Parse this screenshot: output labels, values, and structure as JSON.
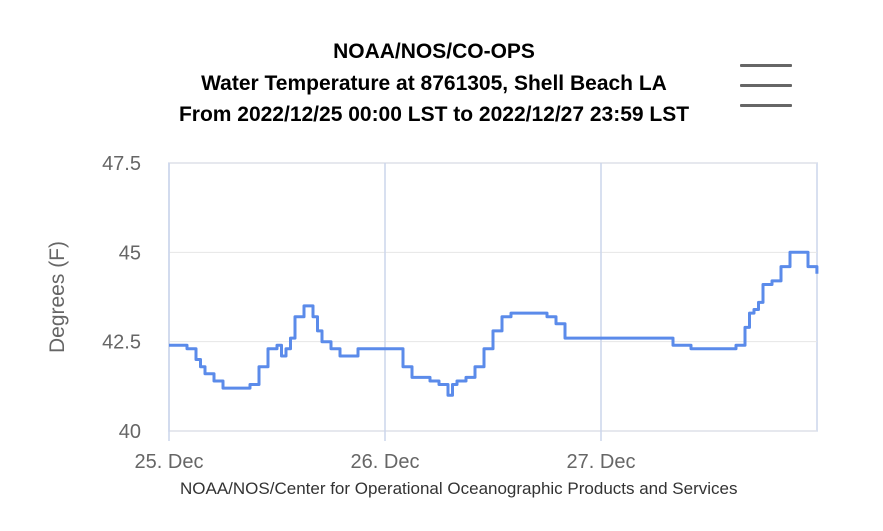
{
  "chart_data": {
    "type": "line",
    "title": [
      "NOAA/NOS/CO-OPS",
      "Water Temperature at 8761305, Shell Beach LA",
      "From 2022/12/25 00:00 LST to 2022/12/27 23:59 LST"
    ],
    "ylabel": "Degrees (F)",
    "xlabel": "",
    "x_range": [
      "2022-12-25 00:00",
      "2022-12-27 23:59"
    ],
    "ylim": [
      40,
      47.5
    ],
    "y_ticks": [
      "40",
      "42.5",
      "45",
      "47.5"
    ],
    "x_ticks": [
      {
        "label": "25. Dec",
        "time": "2022-12-25 00:00"
      },
      {
        "label": "26. Dec",
        "time": "2022-12-26 00:00"
      },
      {
        "label": "27. Dec",
        "time": "2022-12-27 00:00"
      }
    ],
    "grid": true,
    "series": [
      {
        "name": "",
        "color": "#5b8bea",
        "x": [
          "2022-12-25 00:00",
          "2022-12-25 01:00",
          "2022-12-25 02:00",
          "2022-12-25 03:00",
          "2022-12-25 03:30",
          "2022-12-25 04:00",
          "2022-12-25 05:00",
          "2022-12-25 06:00",
          "2022-12-25 07:00",
          "2022-12-25 08:00",
          "2022-12-25 09:00",
          "2022-12-25 10:00",
          "2022-12-25 11:00",
          "2022-12-25 12:00",
          "2022-12-25 12:30",
          "2022-12-25 13:00",
          "2022-12-25 13:30",
          "2022-12-25 14:00",
          "2022-12-25 15:00",
          "2022-12-25 16:00",
          "2022-12-25 16:30",
          "2022-12-25 17:00",
          "2022-12-25 18:00",
          "2022-12-25 19:00",
          "2022-12-25 20:00",
          "2022-12-25 21:00",
          "2022-12-25 22:00",
          "2022-12-25 23:00",
          "2022-12-26 00:00",
          "2022-12-26 01:00",
          "2022-12-26 02:00",
          "2022-12-26 03:00",
          "2022-12-26 04:00",
          "2022-12-26 05:00",
          "2022-12-26 06:00",
          "2022-12-26 07:00",
          "2022-12-26 07:30",
          "2022-12-26 08:00",
          "2022-12-26 09:00",
          "2022-12-26 10:00",
          "2022-12-26 11:00",
          "2022-12-26 12:00",
          "2022-12-26 13:00",
          "2022-12-26 14:00",
          "2022-12-26 15:00",
          "2022-12-26 16:00",
          "2022-12-26 17:00",
          "2022-12-26 18:00",
          "2022-12-26 19:00",
          "2022-12-26 20:00",
          "2022-12-26 21:00",
          "2022-12-26 22:00",
          "2022-12-26 23:00",
          "2022-12-27 00:00",
          "2022-12-27 02:00",
          "2022-12-27 04:00",
          "2022-12-27 06:00",
          "2022-12-27 08:00",
          "2022-12-27 10:00",
          "2022-12-27 12:00",
          "2022-12-27 13:00",
          "2022-12-27 14:00",
          "2022-12-27 15:00",
          "2022-12-27 16:00",
          "2022-12-27 16:30",
          "2022-12-27 17:00",
          "2022-12-27 17:30",
          "2022-12-27 18:00",
          "2022-12-27 19:00",
          "2022-12-27 20:00",
          "2022-12-27 21:00",
          "2022-12-27 22:00",
          "2022-12-27 23:00",
          "2022-12-27 23:59"
        ],
        "values": [
          42.4,
          42.4,
          42.3,
          42.0,
          41.8,
          41.6,
          41.4,
          41.2,
          41.2,
          41.2,
          41.3,
          41.8,
          42.3,
          42.4,
          42.1,
          42.3,
          42.6,
          43.2,
          43.5,
          43.2,
          42.8,
          42.5,
          42.3,
          42.1,
          42.1,
          42.3,
          42.3,
          42.3,
          42.3,
          42.3,
          41.8,
          41.5,
          41.5,
          41.4,
          41.3,
          41.0,
          41.3,
          41.4,
          41.5,
          41.8,
          42.3,
          42.8,
          43.2,
          43.3,
          43.3,
          43.3,
          43.3,
          43.2,
          43.0,
          42.6,
          42.6,
          42.6,
          42.6,
          42.6,
          42.6,
          42.6,
          42.6,
          42.4,
          42.3,
          42.3,
          42.3,
          42.3,
          42.4,
          42.9,
          43.3,
          43.4,
          43.6,
          44.1,
          44.2,
          44.6,
          45.0,
          45.0,
          44.6,
          44.4
        ]
      }
    ]
  },
  "credit": "NOAA/NOS/Center for Operational Oceanographic Products and Services",
  "menu_icon": "hamburger-menu-icon"
}
